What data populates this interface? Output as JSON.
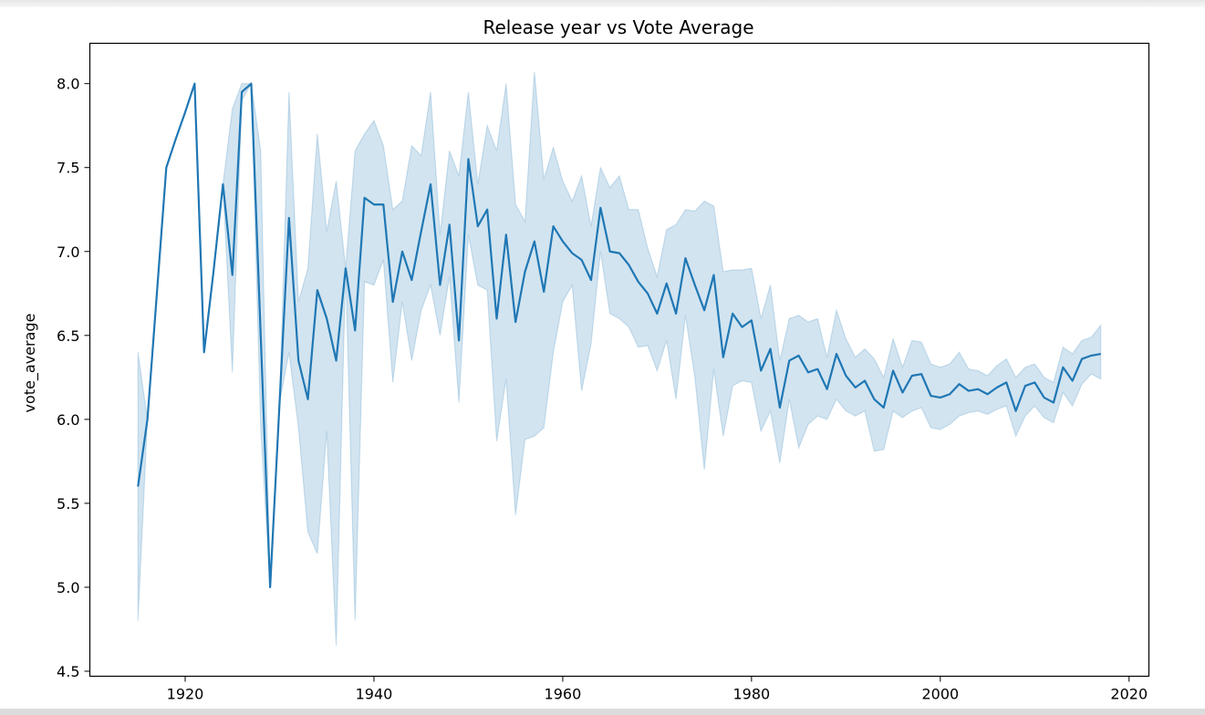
{
  "chart_data": {
    "type": "line",
    "title": "Release year vs Vote Average",
    "xlabel": "",
    "ylabel": "vote_average",
    "xlim": [
      1909.9,
      2022.1
    ],
    "ylim": [
      4.47,
      8.24
    ],
    "xticks": [
      1920,
      1940,
      1960,
      1980,
      2000,
      2020
    ],
    "yticks": [
      4.5,
      5.0,
      5.5,
      6.0,
      6.5,
      7.0,
      7.5,
      8.0
    ],
    "ytick_labels": [
      "4.5",
      "5.0",
      "5.5",
      "6.0",
      "6.5",
      "7.0",
      "7.5",
      "8.0"
    ],
    "grid": false,
    "colors": {
      "line": "#1f77b4",
      "band": "#1f77b4"
    },
    "series": [
      {
        "x": [
          1915,
          1916,
          1917,
          1918,
          1919,
          1920,
          1921,
          1922,
          1923,
          1924,
          1925,
          1926,
          1927,
          1928,
          1929,
          1930,
          1931,
          1932,
          1933,
          1934,
          1935,
          1936,
          1937,
          1938,
          1939,
          1940,
          1941,
          1942,
          1943,
          1944,
          1945,
          1946,
          1947,
          1948,
          1949,
          1950,
          1951,
          1952,
          1953,
          1954,
          1955,
          1956,
          1957,
          1958,
          1959,
          1960,
          1961,
          1962,
          1963,
          1964,
          1965,
          1966,
          1967,
          1968,
          1969,
          1970,
          1971,
          1972,
          1973,
          1974,
          1975,
          1976,
          1977,
          1978,
          1979,
          1980,
          1981,
          1982,
          1983,
          1984,
          1985,
          1986,
          1987,
          1988,
          1989,
          1990,
          1991,
          1992,
          1993,
          1994,
          1995,
          1996,
          1997,
          1998,
          1999,
          2000,
          2001,
          2002,
          2003,
          2004,
          2005,
          2006,
          2007,
          2008,
          2009,
          2010,
          2011,
          2012,
          2013,
          2014,
          2015,
          2016,
          2017
        ],
        "y": [
          5.6,
          6.0,
          6.75,
          7.5,
          7.67,
          7.83,
          8.0,
          6.4,
          6.88,
          7.4,
          6.86,
          7.95,
          8.0,
          6.5,
          5.0,
          6.1,
          7.2,
          6.35,
          6.12,
          6.77,
          6.6,
          6.35,
          6.9,
          6.53,
          7.32,
          7.28,
          7.28,
          6.7,
          7.0,
          6.83,
          7.12,
          7.4,
          6.8,
          7.16,
          6.47,
          7.55,
          7.15,
          7.25,
          6.6,
          7.1,
          6.58,
          6.88,
          7.06,
          6.76,
          7.15,
          7.06,
          6.99,
          6.95,
          6.83,
          7.26,
          7.0,
          6.99,
          6.92,
          6.82,
          6.75,
          6.63,
          6.81,
          6.63,
          6.96,
          6.8,
          6.65,
          6.86,
          6.37,
          6.63,
          6.55,
          6.59,
          6.29,
          6.42,
          6.07,
          6.35,
          6.38,
          6.28,
          6.3,
          6.18,
          6.39,
          6.26,
          6.19,
          6.23,
          6.12,
          6.07,
          6.29,
          6.16,
          6.26,
          6.27,
          6.14,
          6.13,
          6.15,
          6.21,
          6.17,
          6.18,
          6.15,
          6.19,
          6.22,
          6.05,
          6.2,
          6.22,
          6.13,
          6.1,
          6.31,
          6.23,
          6.36,
          6.38,
          6.39
        ],
        "ci_lower": [
          4.8,
          6.0,
          6.75,
          7.5,
          7.67,
          7.83,
          8.0,
          6.4,
          6.88,
          7.4,
          6.28,
          7.9,
          8.0,
          5.95,
          5.0,
          6.1,
          6.4,
          5.95,
          5.33,
          5.2,
          5.93,
          4.65,
          6.9,
          4.8,
          6.82,
          6.8,
          6.95,
          6.22,
          6.7,
          6.35,
          6.65,
          6.8,
          6.5,
          6.85,
          6.1,
          7.1,
          6.8,
          6.77,
          5.87,
          6.24,
          5.43,
          5.88,
          5.9,
          5.95,
          6.4,
          6.7,
          6.8,
          6.17,
          6.45,
          7.0,
          6.63,
          6.6,
          6.55,
          6.43,
          6.44,
          6.29,
          6.47,
          6.12,
          6.62,
          6.25,
          5.7,
          6.3,
          5.9,
          6.2,
          6.23,
          6.22,
          5.93,
          6.05,
          5.74,
          6.12,
          5.83,
          5.97,
          6.02,
          6.0,
          6.12,
          6.05,
          6.02,
          6.05,
          5.81,
          5.82,
          6.05,
          6.01,
          6.05,
          6.07,
          5.95,
          5.94,
          5.97,
          6.02,
          6.04,
          6.05,
          6.03,
          6.06,
          6.08,
          5.9,
          6.02,
          6.08,
          6.01,
          5.98,
          6.16,
          6.08,
          6.21,
          6.27,
          6.24
        ],
        "ci_upper": [
          6.4,
          6.0,
          6.75,
          7.5,
          7.67,
          7.83,
          8.0,
          6.4,
          6.88,
          7.4,
          7.85,
          8.0,
          8.0,
          7.6,
          5.0,
          6.1,
          7.95,
          6.7,
          6.9,
          7.7,
          7.12,
          7.42,
          6.9,
          7.6,
          7.7,
          7.78,
          7.63,
          7.25,
          7.3,
          7.63,
          7.57,
          7.95,
          7.1,
          7.6,
          7.45,
          7.95,
          7.4,
          7.75,
          7.6,
          8.0,
          7.28,
          7.18,
          8.07,
          7.43,
          7.62,
          7.42,
          7.3,
          7.45,
          7.15,
          7.5,
          7.38,
          7.45,
          7.25,
          7.25,
          7.02,
          6.85,
          7.13,
          7.16,
          7.25,
          7.24,
          7.3,
          7.27,
          6.88,
          6.89,
          6.89,
          6.9,
          6.6,
          6.8,
          6.35,
          6.6,
          6.62,
          6.58,
          6.6,
          6.37,
          6.65,
          6.48,
          6.37,
          6.42,
          6.36,
          6.25,
          6.48,
          6.31,
          6.47,
          6.46,
          6.33,
          6.31,
          6.33,
          6.4,
          6.3,
          6.29,
          6.26,
          6.32,
          6.36,
          6.25,
          6.31,
          6.33,
          6.25,
          6.22,
          6.43,
          6.39,
          6.47,
          6.49,
          6.56
        ]
      }
    ]
  }
}
